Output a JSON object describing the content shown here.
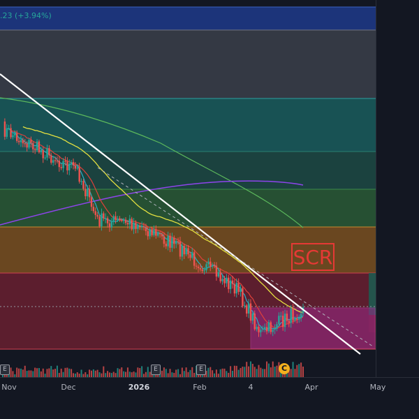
{
  "header": {
    "price_change": ".23 (+3.94%)"
  },
  "annotation": {
    "label": "SCR"
  },
  "time_axis": {
    "labels": [
      "Nov",
      "Dec",
      "2026",
      "Feb",
      "4",
      "Apr",
      "May"
    ],
    "bold": [
      "2026"
    ]
  },
  "events": [
    {
      "label": "E"
    },
    {
      "label": "E"
    },
    {
      "label": "E"
    },
    {
      "label": "C"
    }
  ],
  "colors": {
    "background": "#131722",
    "up": "#26a69a",
    "down": "#ef5350",
    "trendline": "#ffffff",
    "ma_fast": "#2ab0c8",
    "ma_mid": "#e0403a",
    "ma_slow": "#e4e040",
    "ma_long": "#5cb85c",
    "ma_200": "#8e44ec"
  },
  "chart_data": {
    "type": "candlestick",
    "x_labels": [
      "Nov",
      "Dec",
      "2026",
      "Feb",
      "4",
      "Apr",
      "May"
    ],
    "price_zones": [
      {
        "color": "#1e3a8a"
      },
      {
        "color": "#3b3f4a"
      },
      {
        "color": "#1a5d5d"
      },
      {
        "color": "#1d4a44"
      },
      {
        "color": "#2a5a36"
      },
      {
        "color": "#7a5020"
      },
      {
        "color": "#6a2030"
      }
    ],
    "trend": "downtrend",
    "moving_averages": [
      "fast",
      "mid",
      "slow",
      "long",
      "200"
    ],
    "grid": false,
    "legend": "none"
  }
}
